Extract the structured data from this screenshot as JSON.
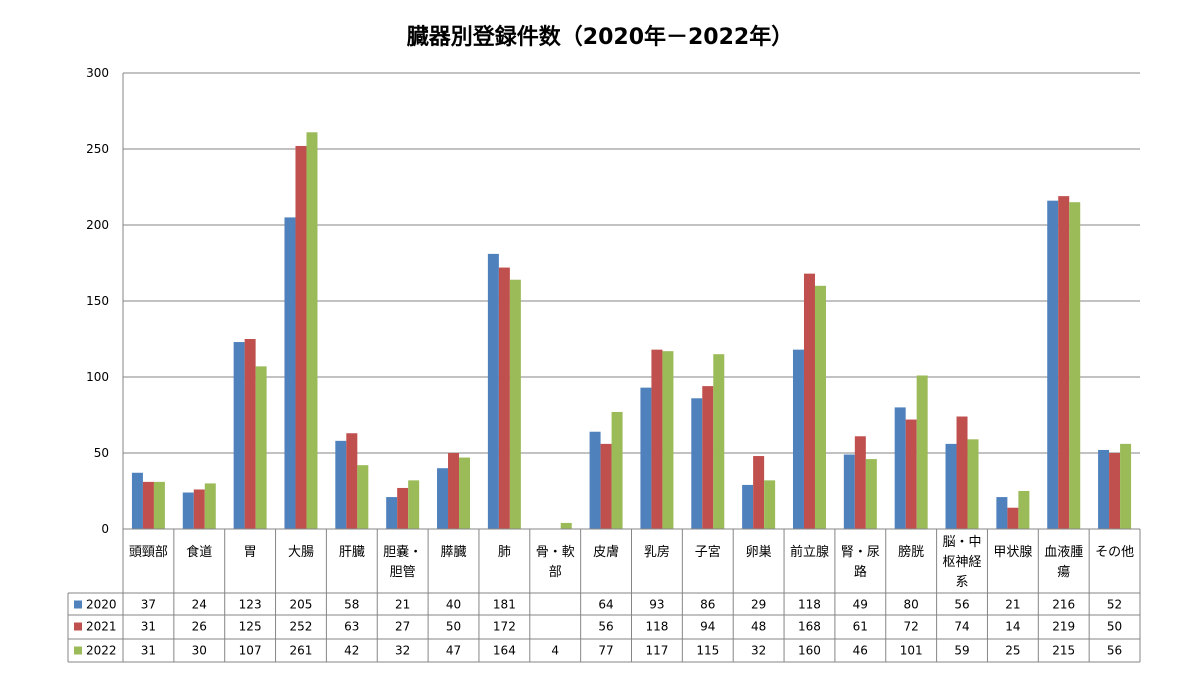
{
  "chart_data": {
    "type": "bar",
    "title": "臓器別登録件数（2020年－2022年）",
    "ylim": [
      0,
      300
    ],
    "yticks": [
      0,
      50,
      100,
      150,
      200,
      250,
      300
    ],
    "grid": true,
    "legend_placement": "data-table",
    "categories": [
      [
        "頭頸部"
      ],
      [
        "食道"
      ],
      [
        "胃"
      ],
      [
        "大腸"
      ],
      [
        "肝臓"
      ],
      [
        "胆嚢・",
        "胆管"
      ],
      [
        "膵臓"
      ],
      [
        "肺"
      ],
      [
        "骨・軟",
        "部"
      ],
      [
        "皮膚"
      ],
      [
        "乳房"
      ],
      [
        "子宮"
      ],
      [
        "卵巣"
      ],
      [
        "前立腺"
      ],
      [
        "腎・尿",
        "路"
      ],
      [
        "膀胱"
      ],
      [
        "脳・中",
        "枢神経",
        "系"
      ],
      [
        "甲状腺"
      ],
      [
        "血液腫",
        "瘍"
      ],
      [
        "その他"
      ]
    ],
    "series": [
      {
        "name": "2020",
        "color": "#4F81BD",
        "values": [
          37,
          24,
          123,
          205,
          58,
          21,
          40,
          181,
          null,
          64,
          93,
          86,
          29,
          118,
          49,
          80,
          56,
          21,
          216,
          52
        ]
      },
      {
        "name": "2021",
        "color": "#C0504D",
        "values": [
          31,
          26,
          125,
          252,
          63,
          27,
          50,
          172,
          null,
          56,
          118,
          94,
          48,
          168,
          61,
          72,
          74,
          14,
          219,
          50
        ]
      },
      {
        "name": "2022",
        "color": "#9BBB59",
        "values": [
          31,
          30,
          107,
          261,
          42,
          32,
          47,
          164,
          4,
          77,
          117,
          115,
          32,
          160,
          46,
          101,
          59,
          25,
          215,
          56
        ]
      }
    ]
  }
}
